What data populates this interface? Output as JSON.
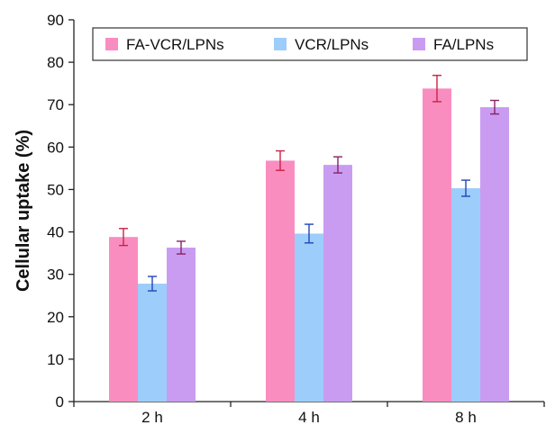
{
  "chart_data": {
    "type": "bar",
    "title": "",
    "xlabel": "",
    "ylabel": "Cellular uptake (%)",
    "ylim": [
      0,
      90
    ],
    "yticks": [
      0,
      10,
      20,
      30,
      40,
      50,
      60,
      70,
      80,
      90
    ],
    "categories": [
      "2 h",
      "4 h",
      "8 h"
    ],
    "grid": false,
    "legend_position": "top",
    "series": [
      {
        "name": "FA-VCR/LPNs",
        "color": "#f98dc0",
        "values": [
          38.8,
          56.8,
          73.8
        ],
        "errors": [
          2.0,
          2.3,
          3.1
        ],
        "error_color": "#cc2244"
      },
      {
        "name": "VCR/LPNs",
        "color": "#9dcdfa",
        "values": [
          27.8,
          39.6,
          50.3
        ],
        "errors": [
          1.7,
          2.2,
          1.9
        ],
        "error_color": "#2244bb"
      },
      {
        "name": "FA/LPNs",
        "color": "#c99cf2",
        "values": [
          36.3,
          55.8,
          69.4
        ],
        "errors": [
          1.5,
          1.9,
          1.6
        ],
        "error_color": "#882266"
      }
    ]
  }
}
